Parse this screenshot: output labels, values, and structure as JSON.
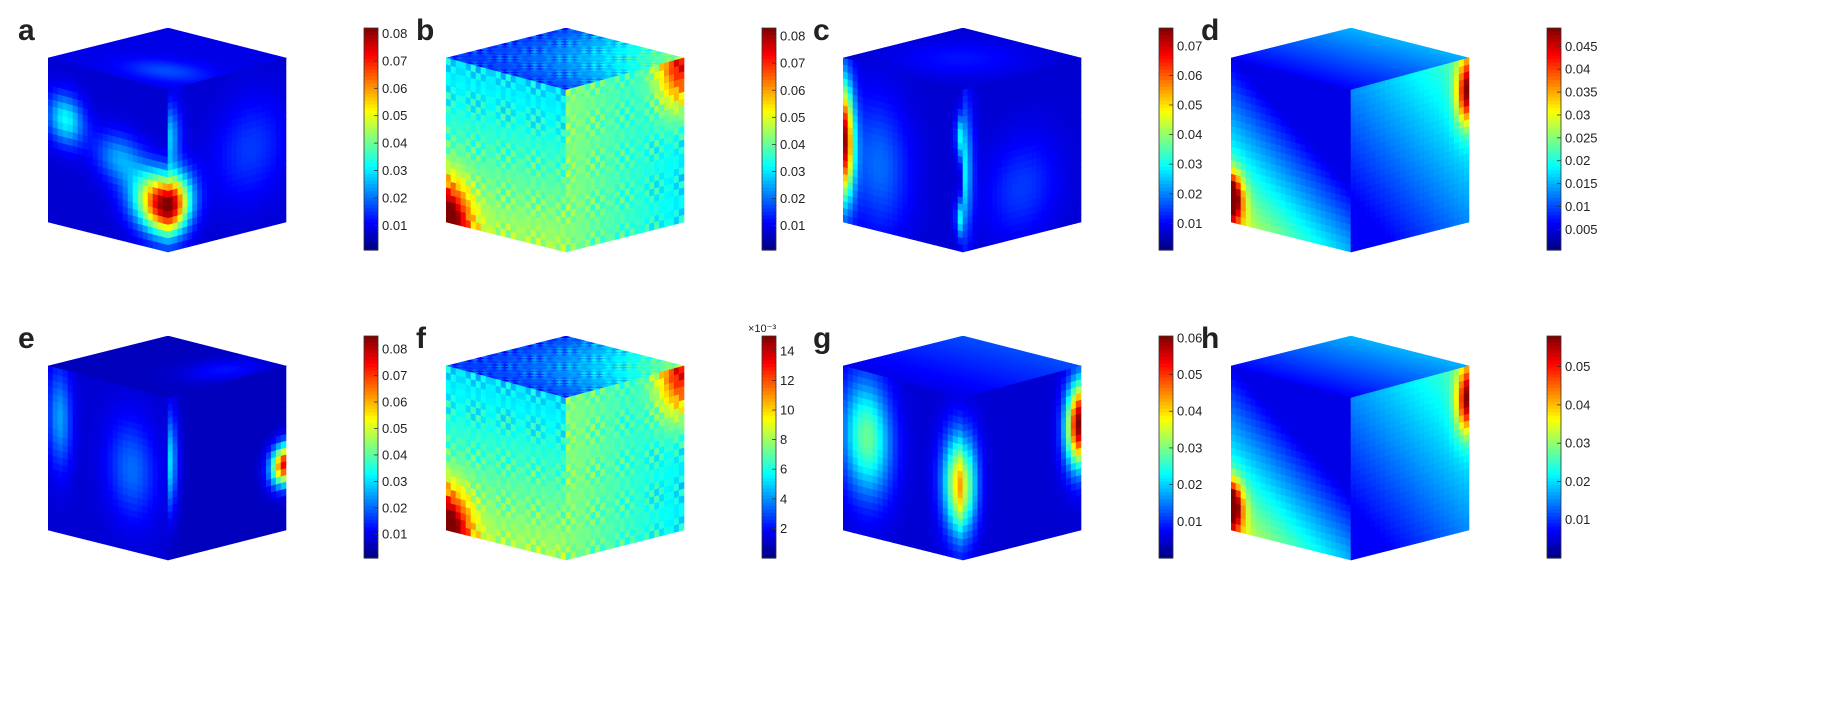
{
  "chart_data": [
    {
      "type": "heatmap",
      "label": "a",
      "colormap": "jet",
      "clim": [
        0.001,
        0.082
      ],
      "ticks": [
        0.01,
        0.02,
        0.03,
        0.04,
        0.05,
        0.06,
        0.07,
        0.08
      ],
      "tick_labels": [
        "0.01",
        "0.02",
        "0.03",
        "0.04",
        "0.05",
        "0.06",
        "0.07",
        "0.08"
      ],
      "exponent": "",
      "pattern": "front-blob"
    },
    {
      "type": "heatmap",
      "label": "b",
      "colormap": "jet",
      "clim": [
        0.001,
        0.083
      ],
      "ticks": [
        0.01,
        0.02,
        0.03,
        0.04,
        0.05,
        0.06,
        0.07,
        0.08
      ],
      "tick_labels": [
        "0.01",
        "0.02",
        "0.03",
        "0.04",
        "0.05",
        "0.06",
        "0.07",
        "0.08"
      ],
      "exponent": "",
      "pattern": "lattice-corners"
    },
    {
      "type": "heatmap",
      "label": "c",
      "colormap": "jet",
      "clim": [
        0.001,
        0.076
      ],
      "ticks": [
        0.01,
        0.02,
        0.03,
        0.04,
        0.05,
        0.06,
        0.07
      ],
      "tick_labels": [
        "0.01",
        "0.02",
        "0.03",
        "0.04",
        "0.05",
        "0.06",
        "0.07"
      ],
      "exponent": "",
      "pattern": "left-edge-ridge"
    },
    {
      "type": "heatmap",
      "label": "d",
      "colormap": "jet",
      "clim": [
        0.0005,
        0.049
      ],
      "ticks": [
        0.005,
        0.01,
        0.015,
        0.02,
        0.025,
        0.03,
        0.035,
        0.04,
        0.045
      ],
      "tick_labels": [
        "0.005",
        "0.01",
        "0.015",
        "0.02",
        "0.025",
        "0.03",
        "0.035",
        "0.04",
        "0.045"
      ],
      "exponent": "",
      "pattern": "diagonal-gradient"
    },
    {
      "type": "heatmap",
      "label": "e",
      "colormap": "jet",
      "clim": [
        0.001,
        0.085
      ],
      "ticks": [
        0.01,
        0.02,
        0.03,
        0.04,
        0.05,
        0.06,
        0.07,
        0.08
      ],
      "tick_labels": [
        "0.01",
        "0.02",
        "0.03",
        "0.04",
        "0.05",
        "0.06",
        "0.07",
        "0.08"
      ],
      "exponent": "",
      "pattern": "right-edge-hot"
    },
    {
      "type": "heatmap",
      "label": "f",
      "colormap": "jet",
      "clim": [
        0.0,
        15.0
      ],
      "ticks": [
        2,
        4,
        6,
        8,
        10,
        12,
        14
      ],
      "tick_labels": [
        "2",
        "4",
        "6",
        "8",
        "10",
        "12",
        "14"
      ],
      "exponent": "×10⁻³",
      "pattern": "lattice-corners"
    },
    {
      "type": "heatmap",
      "label": "g",
      "colormap": "jet",
      "clim": [
        0.0,
        0.0605
      ],
      "ticks": [
        0.01,
        0.02,
        0.03,
        0.04,
        0.05,
        0.06
      ],
      "tick_labels": [
        "0.01",
        "0.02",
        "0.03",
        "0.04",
        "0.05",
        "0.06"
      ],
      "exponent": "",
      "pattern": "smooth-bands"
    },
    {
      "type": "heatmap",
      "label": "h",
      "colormap": "jet",
      "clim": [
        0.0,
        0.058
      ],
      "ticks": [
        0.01,
        0.02,
        0.03,
        0.04,
        0.05
      ],
      "tick_labels": [
        "0.01",
        "0.02",
        "0.03",
        "0.04",
        "0.05"
      ],
      "exponent": "",
      "pattern": "diagonal-gradient"
    }
  ]
}
